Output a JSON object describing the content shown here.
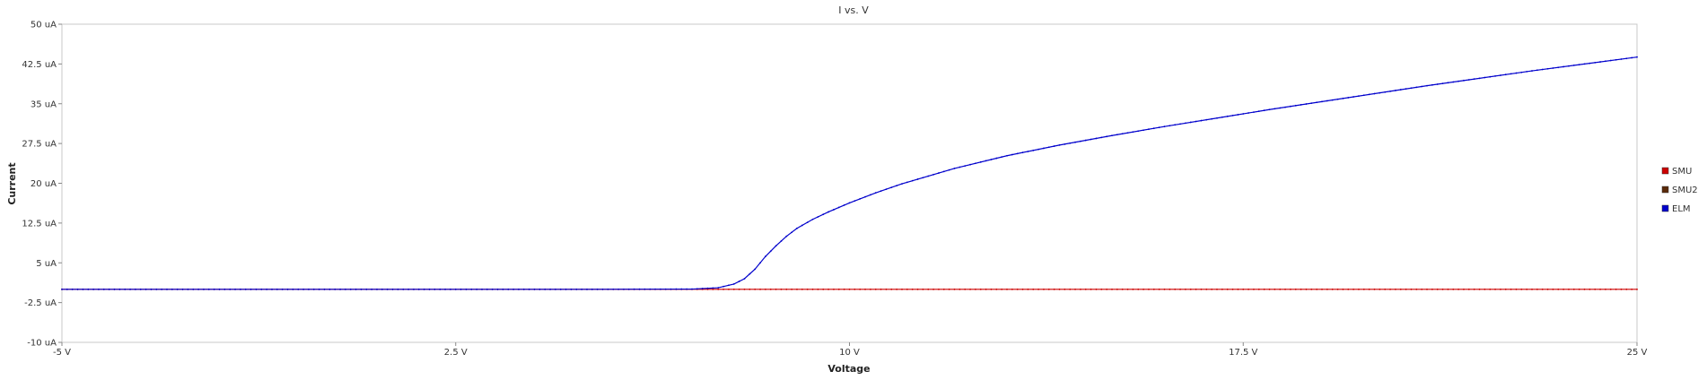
{
  "chart_data": {
    "type": "line",
    "title": "I vs. V",
    "xlabel": "Voltage",
    "ylabel": "Current",
    "xlim": [
      -5,
      25
    ],
    "ylim": [
      -10,
      50
    ],
    "x_ticks": [
      -5,
      2.5,
      10,
      17.5,
      25
    ],
    "x_tick_labels": [
      "-5 V",
      "2.5 V",
      "10 V",
      "17.5 V",
      "25 V"
    ],
    "y_ticks": [
      50,
      42.5,
      35,
      27.5,
      20,
      12.5,
      5,
      -2.5,
      -10
    ],
    "y_tick_labels": [
      "50 uA",
      "42.5 uA",
      "35 uA",
      "27.5 uA",
      "20 uA",
      "12.5 uA",
      "5 uA",
      "-2.5 uA",
      "-10 uA"
    ],
    "grid": true,
    "legend_position": "right",
    "series": [
      {
        "name": "SMU",
        "color": "#cc0000",
        "x": [
          -5,
          0,
          5,
          7,
          8,
          9,
          10,
          12.5,
          15,
          17.5,
          20,
          22.5,
          25
        ],
        "y": [
          0,
          0,
          0,
          0,
          0,
          0,
          0,
          0,
          0,
          0,
          0,
          0,
          0
        ]
      },
      {
        "name": "SMU2",
        "color": "#5a2a0a",
        "x": [],
        "y": []
      },
      {
        "name": "ELM",
        "color": "#0000cc",
        "x": [
          -5,
          0,
          5,
          7,
          7.5,
          7.8,
          8.0,
          8.2,
          8.4,
          8.6,
          8.8,
          9.0,
          9.3,
          9.6,
          10.0,
          10.5,
          11,
          12,
          13,
          14,
          15,
          16,
          17,
          18,
          19,
          20,
          21,
          22,
          23,
          24,
          25
        ],
        "y": [
          0,
          0,
          0,
          0.05,
          0.3,
          1.0,
          2.0,
          3.8,
          6.2,
          8.2,
          10.0,
          11.5,
          13.2,
          14.6,
          16.3,
          18.2,
          19.9,
          22.8,
          25.2,
          27.2,
          29.0,
          30.7,
          32.3,
          33.9,
          35.4,
          36.9,
          38.4,
          39.8,
          41.2,
          42.5,
          43.8
        ]
      }
    ]
  }
}
